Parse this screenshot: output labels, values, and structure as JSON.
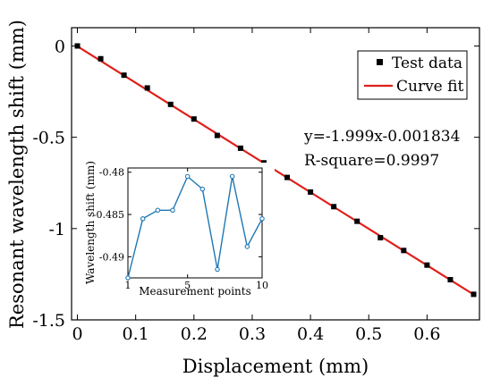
{
  "chart_data": [
    {
      "type": "scatter",
      "xlabel": "Displacement (mm)",
      "ylabel": "Resonant wavelength shift (mm)",
      "xlim": [
        -0.01,
        0.69
      ],
      "ylim": [
        -1.5,
        0.1
      ],
      "xticks": [
        0,
        0.1,
        0.2,
        0.3,
        0.4,
        0.5,
        0.6
      ],
      "xtick_labels": [
        "0",
        "0.1",
        "0.2",
        "0.3",
        "0.4",
        "0.5",
        "0.6"
      ],
      "yticks": [
        0,
        -0.5,
        -1,
        -1.5
      ],
      "ytick_labels": [
        "0",
        "-0.5",
        "-1",
        "-1.5"
      ],
      "series": [
        {
          "name": "Test data",
          "marker": "square",
          "color": "#000000",
          "x": [
            0,
            0.04,
            0.08,
            0.12,
            0.16,
            0.2,
            0.24,
            0.28,
            0.32,
            0.36,
            0.4,
            0.44,
            0.48,
            0.52,
            0.56,
            0.6,
            0.64,
            0.68
          ],
          "y": [
            0,
            -0.07,
            -0.16,
            -0.23,
            -0.32,
            -0.4,
            -0.49,
            -0.56,
            -0.64,
            -0.72,
            -0.8,
            -0.88,
            -0.96,
            -1.05,
            -1.12,
            -1.2,
            -1.28,
            -1.36
          ]
        },
        {
          "name": "Curve fit",
          "type": "line",
          "color": "#e0201b",
          "x": [
            0,
            0.68
          ],
          "y": [
            -0.001834,
            -1.361154
          ]
        }
      ],
      "legend": {
        "position": "top-right",
        "entries": [
          "Test data",
          "Curve fit"
        ]
      },
      "annotations": [
        "y=-1.999x-0.001834",
        "R-square=0.9997"
      ],
      "grid": false
    },
    {
      "type": "line",
      "xlabel": "Measurement points",
      "ylabel": "Wavelength shift (mm)",
      "xlim": [
        1,
        10
      ],
      "ylim": [
        -0.4925,
        -0.4795
      ],
      "xticks": [
        1,
        5,
        10
      ],
      "xtick_labels": [
        "1",
        "5",
        "10"
      ],
      "yticks": [
        -0.48,
        -0.485,
        -0.49
      ],
      "ytick_labels": [
        "-0.48",
        "-0.485",
        "-0.49"
      ],
      "series": [
        {
          "color": "#1f77b4",
          "marker": "circle",
          "x": [
            1,
            2,
            3,
            4,
            5,
            6,
            7,
            8,
            9,
            10
          ],
          "y": [
            -0.4925,
            -0.4855,
            -0.4845,
            -0.4845,
            -0.4805,
            -0.482,
            -0.4915,
            -0.4805,
            -0.4888,
            -0.4855
          ]
        }
      ],
      "grid": false
    }
  ]
}
